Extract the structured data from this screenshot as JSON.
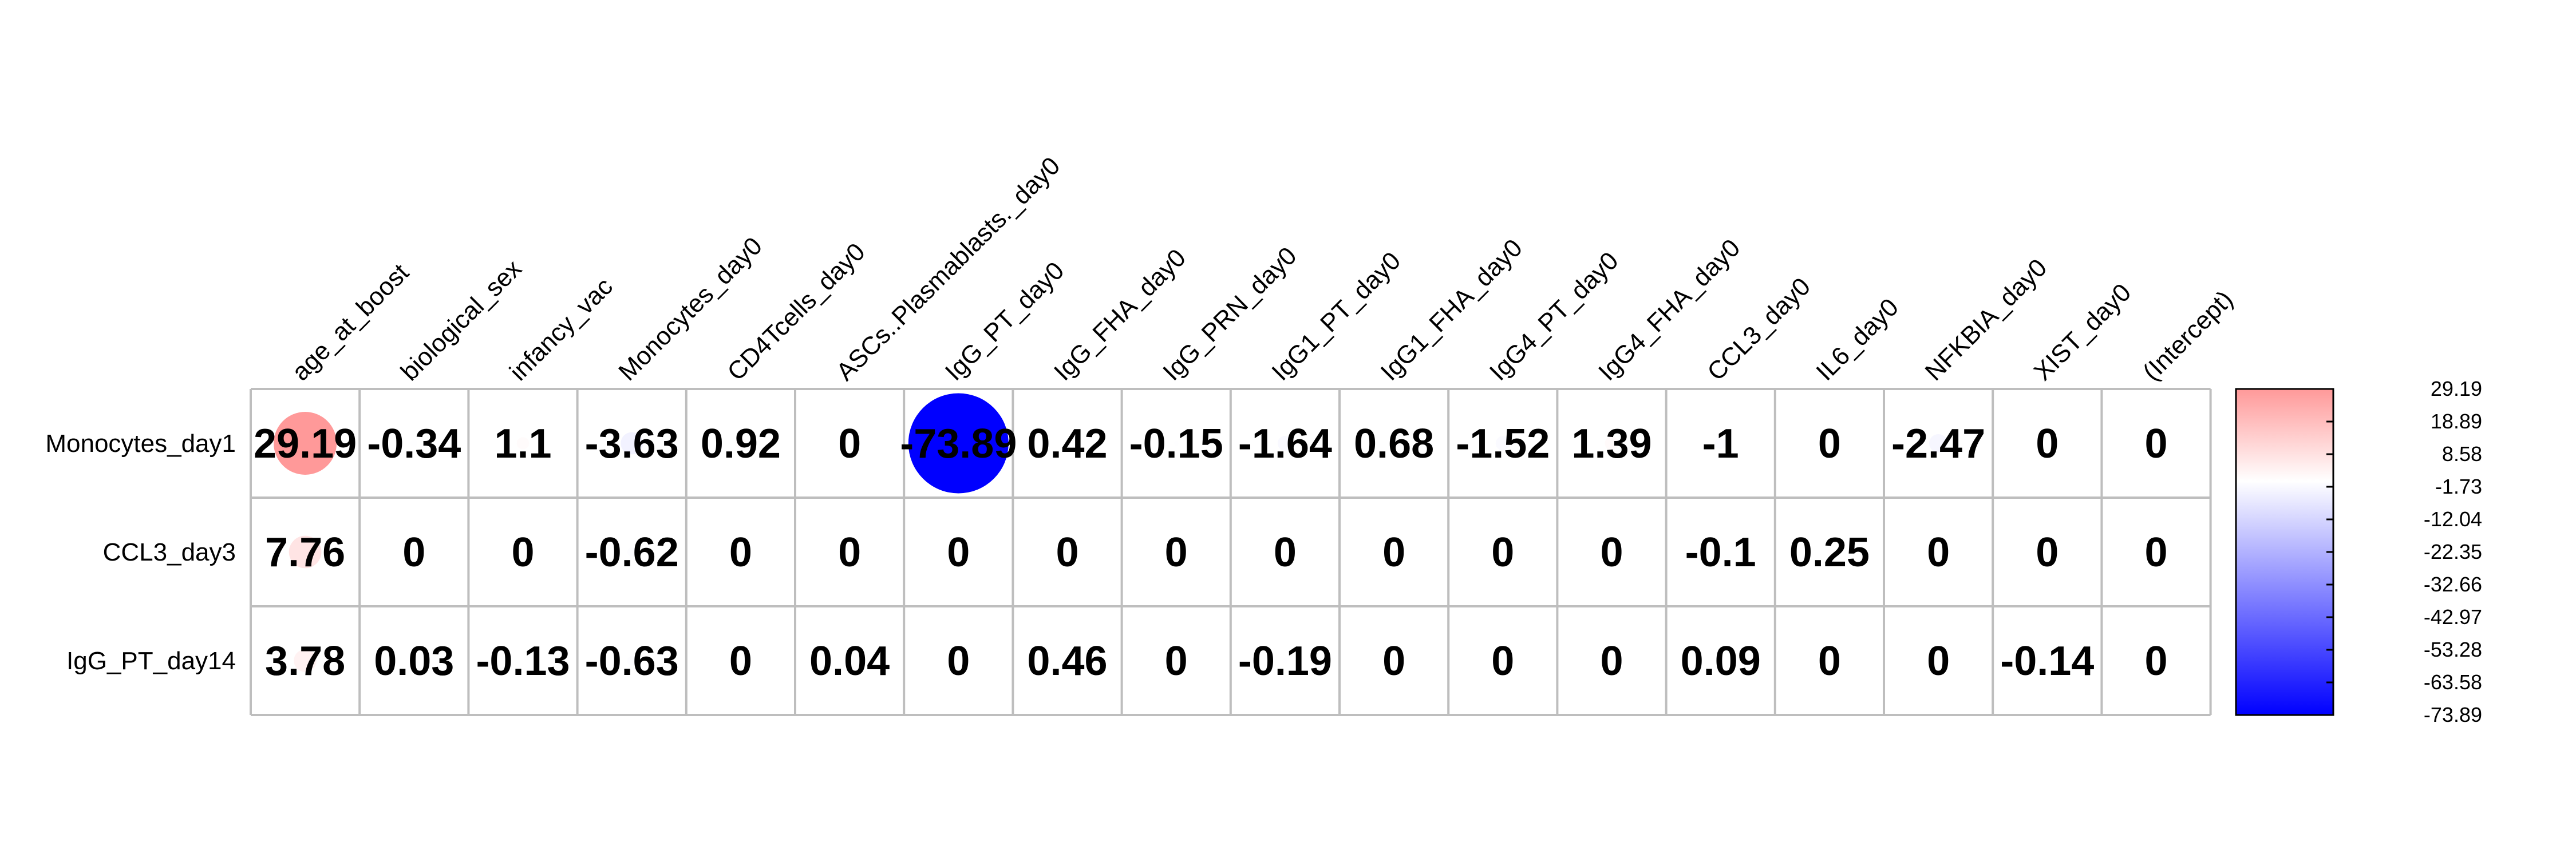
{
  "colors": {
    "negative": "#0000FF",
    "neutral": "#FFFFFF",
    "positive": "#FF9999",
    "grid": "#BEBEBE"
  },
  "chart_data": {
    "type": "heatmap",
    "style": "circle-corrplot",
    "rows": [
      "Monocytes_day1",
      "CCL3_day3",
      "IgG_PT_day14"
    ],
    "columns": [
      "age_at_boost",
      "biological_sex",
      "infancy_vac",
      "Monocytes_day0",
      "CD4Tcells_day0",
      "ASCs..Plasmablasts._day0",
      "IgG_PT_day0",
      "IgG_FHA_day0",
      "IgG_PRN_day0",
      "IgG1_PT_day0",
      "IgG1_FHA_day0",
      "IgG4_PT_day0",
      "IgG4_FHA_day0",
      "CCL3_day0",
      "IL6_day0",
      "NFKBIA_day0",
      "XIST_day0",
      "(Intercept)"
    ],
    "values": [
      [
        29.19,
        -0.34,
        1.1,
        -3.63,
        0.92,
        0,
        -73.89,
        0.42,
        -0.15,
        -1.64,
        0.68,
        -1.52,
        1.39,
        -1,
        0,
        -2.47,
        0,
        0
      ],
      [
        7.76,
        0,
        0,
        -0.62,
        0,
        0,
        0,
        0,
        0,
        0,
        0,
        0,
        0,
        -0.1,
        0.25,
        0,
        0,
        0
      ],
      [
        3.78,
        0.03,
        -0.13,
        -0.63,
        0,
        0.04,
        0,
        0.46,
        0,
        -0.19,
        0,
        0,
        0,
        0.09,
        0,
        0,
        -0.14,
        0
      ]
    ],
    "color_range": [
      -73.89,
      29.19
    ],
    "legend_ticks": [
      "29.19",
      "18.89",
      "8.58",
      "-1.73",
      "-12.04",
      "-22.35",
      "-32.66",
      "-42.97",
      "-53.28",
      "-63.58",
      "-73.89"
    ],
    "legend_position": "right"
  }
}
